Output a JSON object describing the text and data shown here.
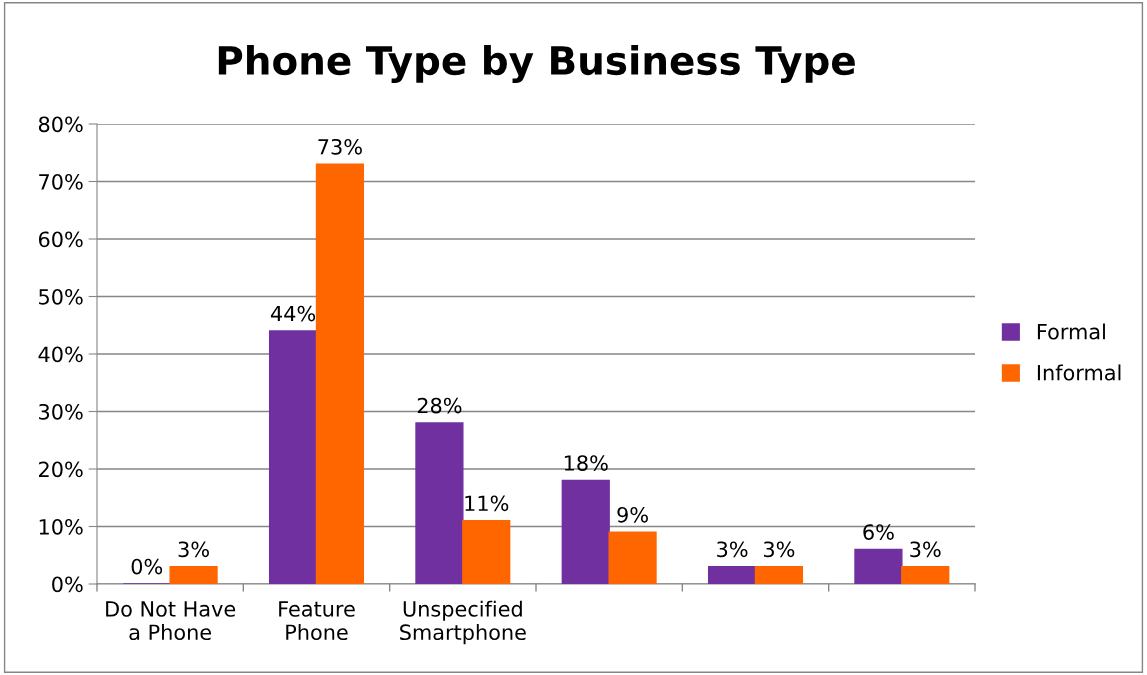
{
  "chart_data": {
    "type": "bar",
    "title": "Phone Type by Business Type",
    "categories": [
      "Do Not Have\na Phone",
      "Feature\nPhone",
      "Unspecified\nSmartphone",
      null,
      null,
      null
    ],
    "series": [
      {
        "name": "Formal",
        "color": "#7030a0",
        "values": [
          0,
          44,
          28,
          18,
          3,
          6
        ],
        "value_labels": [
          "0%",
          "44%",
          "28%",
          "18%",
          "3%",
          "6%"
        ]
      },
      {
        "name": "Informal",
        "color": "#ff6600",
        "values": [
          3,
          73,
          11,
          9,
          3,
          3
        ],
        "value_labels": [
          "3%",
          "73%",
          "11%",
          "9%",
          "3%",
          "3%"
        ]
      }
    ],
    "ylim": [
      0,
      80
    ],
    "yticks": [
      {
        "value": 0,
        "label": "0%"
      },
      {
        "value": 10,
        "label": "10%"
      },
      {
        "value": 20,
        "label": "20%"
      },
      {
        "value": 30,
        "label": "30%"
      },
      {
        "value": 40,
        "label": "40%"
      },
      {
        "value": 50,
        "label": "50%"
      },
      {
        "value": 60,
        "label": "60%"
      },
      {
        "value": 70,
        "label": "70%"
      },
      {
        "value": 80,
        "label": "80%"
      }
    ],
    "grid": "y",
    "legend": "right"
  }
}
